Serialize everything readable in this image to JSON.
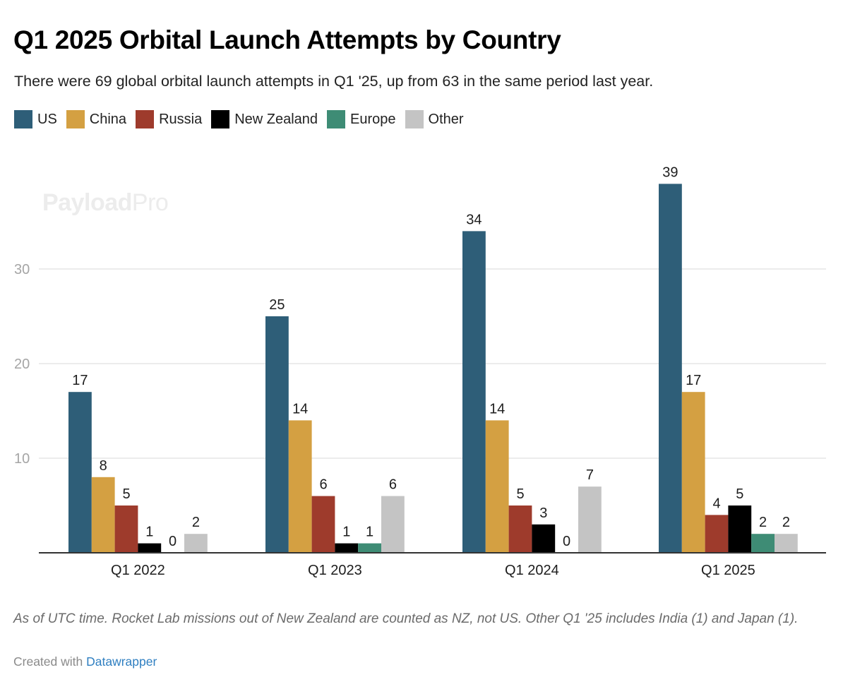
{
  "header": {
    "title": "Q1 2025 Orbital Launch Attempts by Country",
    "subtitle": "There were 69 global orbital launch attempts in Q1 '25, up from 63 in the same period last year."
  },
  "watermark": {
    "bold": "Payload",
    "light": "Pro"
  },
  "footer": {
    "note": "As of UTC time. Rocket Lab missions out of New Zealand are counted as NZ, not US. Other Q1 '25 includes India (1) and Japan (1).",
    "credit_prefix": "Created with ",
    "credit_link": "Datawrapper"
  },
  "chart_data": {
    "type": "bar",
    "title": "Q1 2025 Orbital Launch Attempts by Country",
    "subtitle": "There were 69 global orbital launch attempts in Q1 '25, up from 63 in the same period last year.",
    "xlabel": "",
    "ylabel": "",
    "categories": [
      "Q1 2022",
      "Q1 2023",
      "Q1 2024",
      "Q1 2025"
    ],
    "series": [
      {
        "name": "US",
        "color": "#2e5e78",
        "values": [
          17,
          25,
          34,
          39
        ]
      },
      {
        "name": "China",
        "color": "#d4a042",
        "values": [
          8,
          14,
          14,
          17
        ]
      },
      {
        "name": "Russia",
        "color": "#9e3b2c",
        "values": [
          5,
          6,
          5,
          4
        ]
      },
      {
        "name": "New Zealand",
        "color": "#000000",
        "values": [
          1,
          1,
          3,
          5
        ]
      },
      {
        "name": "Europe",
        "color": "#3e8c75",
        "values": [
          0,
          1,
          0,
          2
        ]
      },
      {
        "name": "Other",
        "color": "#c4c4c4",
        "values": [
          2,
          6,
          7,
          2
        ]
      }
    ],
    "ylim": [
      0,
      40
    ],
    "yticks": [
      10,
      20,
      30
    ],
    "grid": true,
    "legend": "top-left",
    "data_labels": true
  }
}
